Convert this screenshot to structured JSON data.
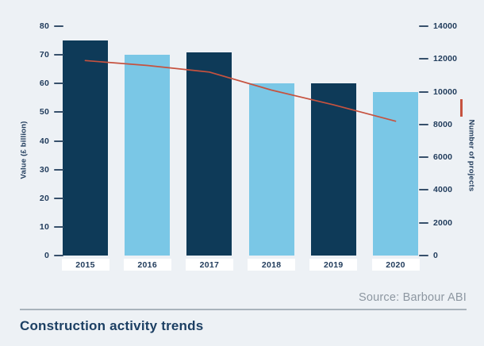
{
  "page": {
    "title": "Construction activity trends",
    "source": "Source: Barbour ABI"
  },
  "chart_data": {
    "type": "bar",
    "title": "Construction activity trends",
    "categories": [
      "2015",
      "2016",
      "2017",
      "2018",
      "2019",
      "2020"
    ],
    "series": [
      {
        "name": "Value (£ billion)",
        "type": "bar",
        "axis": "left",
        "values": [
          75,
          70,
          71,
          60,
          60,
          57
        ]
      },
      {
        "name": "Number of projects",
        "type": "line",
        "axis": "right",
        "values": [
          11900,
          11600,
          11200,
          10100,
          9200,
          8200
        ]
      }
    ],
    "left_axis": {
      "label": "Value (£ billion)",
      "min": 0,
      "max": 80,
      "ticks": [
        80,
        70,
        60,
        50,
        40,
        30,
        20,
        10,
        0
      ]
    },
    "right_axis": {
      "label": "Number of projects",
      "min": 0,
      "max": 14000,
      "ticks": [
        14000,
        12000,
        10000,
        8000,
        6000,
        4000,
        2000,
        0
      ]
    },
    "bar_color_pattern": [
      "dark",
      "light",
      "dark",
      "light",
      "dark",
      "light"
    ],
    "grid": false,
    "legend_position": "right-axis-marker",
    "colors": {
      "background": "#edf1f5",
      "bar_dark": "#0e3a58",
      "bar_light": "#7ac7e6",
      "line": "#c6523f",
      "axis_text": "#213c5c",
      "tick_dash": "#37506b",
      "x_label_box": "#ffffff",
      "source_text": "#8d97a1",
      "divider": "#a9b3bc",
      "title_text": "#1c3f63"
    }
  }
}
